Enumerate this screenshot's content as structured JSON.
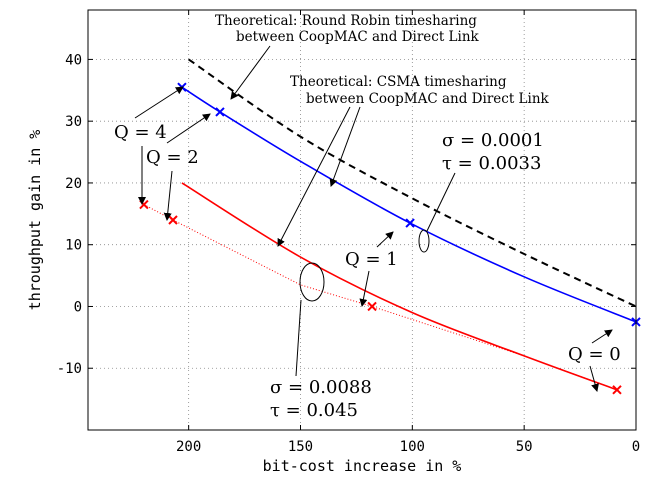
{
  "chart_data": {
    "type": "line",
    "xlabel": "bit-cost increase in %",
    "ylabel": "throughput gain in %",
    "xlim": [
      0,
      245
    ],
    "x_reversed": true,
    "ylim": [
      -20,
      48
    ],
    "xticks": [
      200,
      150,
      100,
      50,
      0
    ],
    "xtick_labels": [
      "200",
      "150",
      "100",
      "50",
      "0"
    ],
    "yticks": [
      40,
      30,
      20,
      10,
      0,
      -10
    ],
    "ytick_labels": [
      "40",
      "30",
      "20",
      "10",
      "0",
      "-10"
    ],
    "grid": true,
    "series": [
      {
        "key": "rr",
        "color": "#000000",
        "style": "dashed",
        "x": [
          200,
          150,
          100,
          50,
          0
        ],
        "y": [
          40,
          27.5,
          17.5,
          8.5,
          0
        ]
      },
      {
        "key": "blue",
        "color": "#0000ff",
        "style": "solid",
        "x": [
          203,
          186,
          150,
          101,
          50,
          0
        ],
        "y": [
          35.5,
          31.5,
          23.5,
          13.5,
          4.8,
          -2.5
        ]
      },
      {
        "key": "red",
        "color": "#ff0000",
        "style": "solid",
        "x": [
          203,
          150,
          100,
          50,
          8.5
        ],
        "y": [
          20,
          8,
          -1,
          -8,
          -13.5
        ]
      },
      {
        "key": "red_dotted",
        "color": "#ff0000",
        "style": "dotted",
        "x": [
          220,
          207,
          150,
          118,
          50,
          8.5
        ],
        "y": [
          16.5,
          14,
          3.5,
          0,
          -8,
          -13.5
        ]
      }
    ],
    "markers": {
      "blue": {
        "color": "#0000ff",
        "x": [
          203,
          186,
          101,
          0
        ],
        "y": [
          35.5,
          31.5,
          13.5,
          -2.5
        ]
      },
      "red": {
        "color": "#ff0000",
        "x": [
          220,
          207,
          118,
          8.5
        ],
        "y": [
          16.5,
          14,
          0,
          -13.5
        ]
      }
    },
    "annotations": {
      "rr_title_line1": "Theoretical: Round Robin timesharing",
      "rr_title_line2": "between CoopMAC and Direct Link",
      "csma_title_line1": "Theoretical: CSMA timesharing",
      "csma_title_line2": "between CoopMAC and Direct Link",
      "q4": "Q = 4",
      "q2": "Q = 2",
      "q1": "Q = 1",
      "q0": "Q = 0",
      "sigma_blue": "σ = 0.0001",
      "tau_blue": "τ = 0.0033",
      "sigma_red": "σ = 0.0088",
      "tau_red": "τ = 0.045"
    }
  }
}
